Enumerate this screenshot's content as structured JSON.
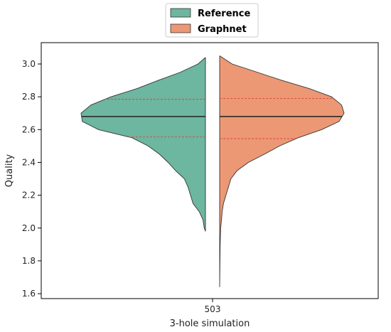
{
  "chart_data": {
    "type": "violin",
    "split": true,
    "categories": [
      "503"
    ],
    "xlabel": "3-hole simulation",
    "ylabel": "Quality",
    "ylim": [
      1.57,
      3.13
    ],
    "yticks": [
      1.6,
      1.8,
      2.0,
      2.2,
      2.4,
      2.6,
      2.8,
      3.0
    ],
    "legend": {
      "placement": "top-center",
      "entries": [
        {
          "name": "Reference",
          "color": "#6db6a0"
        },
        {
          "name": "Graphnet",
          "color": "#ec9875"
        }
      ]
    },
    "series": [
      {
        "name": "Reference",
        "color": "#6db6a0",
        "median": 2.68,
        "q1": 2.555,
        "q3": 2.785,
        "range": [
          1.98,
          3.04
        ],
        "profile": [
          [
            3.04,
            0.0
          ],
          [
            3.0,
            0.06
          ],
          [
            2.95,
            0.2
          ],
          [
            2.9,
            0.38
          ],
          [
            2.85,
            0.55
          ],
          [
            2.8,
            0.76
          ],
          [
            2.75,
            0.92
          ],
          [
            2.7,
            1.0
          ],
          [
            2.65,
            0.99
          ],
          [
            2.6,
            0.86
          ],
          [
            2.55,
            0.59
          ],
          [
            2.5,
            0.46
          ],
          [
            2.45,
            0.37
          ],
          [
            2.4,
            0.3
          ],
          [
            2.35,
            0.24
          ],
          [
            2.3,
            0.17
          ],
          [
            2.25,
            0.14
          ],
          [
            2.2,
            0.12
          ],
          [
            2.15,
            0.1
          ],
          [
            2.1,
            0.05
          ],
          [
            2.05,
            0.02
          ],
          [
            2.0,
            0.01
          ],
          [
            1.98,
            0.0
          ]
        ]
      },
      {
        "name": "Graphnet",
        "color": "#ec9875",
        "median": 2.68,
        "q1": 2.545,
        "q3": 2.79,
        "range": [
          1.64,
          3.05
        ],
        "profile": [
          [
            3.05,
            0.0
          ],
          [
            3.0,
            0.1
          ],
          [
            2.95,
            0.3
          ],
          [
            2.9,
            0.5
          ],
          [
            2.85,
            0.72
          ],
          [
            2.8,
            0.9
          ],
          [
            2.75,
            0.98
          ],
          [
            2.7,
            1.0
          ],
          [
            2.65,
            0.96
          ],
          [
            2.6,
            0.82
          ],
          [
            2.55,
            0.63
          ],
          [
            2.5,
            0.48
          ],
          [
            2.45,
            0.36
          ],
          [
            2.4,
            0.23
          ],
          [
            2.35,
            0.14
          ],
          [
            2.3,
            0.09
          ],
          [
            2.25,
            0.07
          ],
          [
            2.2,
            0.05
          ],
          [
            2.15,
            0.03
          ],
          [
            2.1,
            0.02
          ],
          [
            2.05,
            0.015
          ],
          [
            2.0,
            0.008
          ],
          [
            1.9,
            0.004
          ],
          [
            1.8,
            0.002
          ],
          [
            1.64,
            0.0
          ]
        ]
      }
    ]
  }
}
